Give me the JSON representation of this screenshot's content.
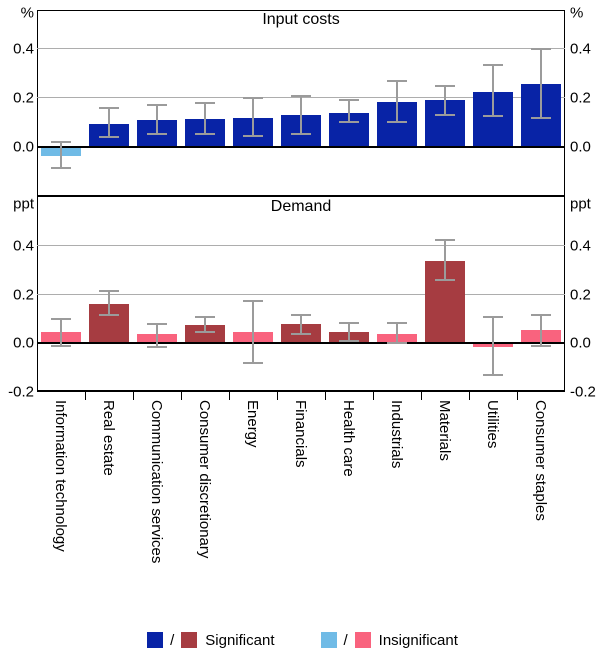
{
  "chart_data": [
    {
      "type": "bar",
      "panel": "input-costs",
      "title": "Input costs",
      "unit_label": "%",
      "categories": [
        "Information technology",
        "Real estate",
        "Communication services",
        "Consumer discretionary",
        "Energy",
        "Financials",
        "Health care",
        "Industrials",
        "Materials",
        "Utilities",
        "Consumer staples"
      ],
      "values": [
        -0.035,
        0.095,
        0.11,
        0.115,
        0.12,
        0.13,
        0.14,
        0.185,
        0.19,
        0.225,
        0.255
      ],
      "ci_low": [
        -0.085,
        0.04,
        0.055,
        0.055,
        0.045,
        0.055,
        0.1,
        0.1,
        0.13,
        0.125,
        0.12
      ],
      "ci_high": [
        0.02,
        0.16,
        0.17,
        0.18,
        0.2,
        0.21,
        0.19,
        0.27,
        0.25,
        0.335,
        0.4
      ],
      "significant": [
        false,
        true,
        true,
        true,
        true,
        true,
        true,
        true,
        true,
        true,
        true
      ],
      "yticks": [
        0.4,
        0.2,
        0.0
      ],
      "ylim": [
        -0.2,
        0.559
      ],
      "grid": true,
      "error_bars": true
    },
    {
      "type": "bar",
      "panel": "demand",
      "title": "Demand",
      "unit_label": "ppt",
      "categories": [
        "Information technology",
        "Real estate",
        "Communication services",
        "Consumer discretionary",
        "Energy",
        "Financials",
        "Health care",
        "Industrials",
        "Materials",
        "Utilities",
        "Consumer staples"
      ],
      "values": [
        0.045,
        0.16,
        0.04,
        0.075,
        0.045,
        0.08,
        0.045,
        0.04,
        0.34,
        -0.015,
        0.055
      ],
      "ci_low": [
        -0.01,
        0.115,
        -0.015,
        0.045,
        -0.08,
        0.04,
        0.01,
        0.0,
        0.26,
        -0.13,
        -0.01
      ],
      "ci_high": [
        0.1,
        0.215,
        0.08,
        0.11,
        0.175,
        0.115,
        0.085,
        0.085,
        0.425,
        0.11,
        0.115
      ],
      "significant": [
        false,
        true,
        false,
        true,
        false,
        true,
        true,
        false,
        true,
        false,
        false
      ],
      "yticks": [
        0.4,
        0.2,
        0.0,
        -0.2
      ],
      "ylim": [
        -0.2,
        0.605
      ],
      "grid": true,
      "error_bars": true
    }
  ],
  "colors": {
    "significant_costs": "#0823A6",
    "insignificant_costs": "#70BBE6",
    "significant_demand": "#A63C41",
    "insignificant_demand": "#F9637E",
    "error_bar": "#9B9B9B",
    "gridline": "#ADADAD",
    "axis": "#000000"
  },
  "legend": {
    "separator": "/",
    "significant_label": "Significant",
    "insignificant_label": "Insignificant"
  }
}
